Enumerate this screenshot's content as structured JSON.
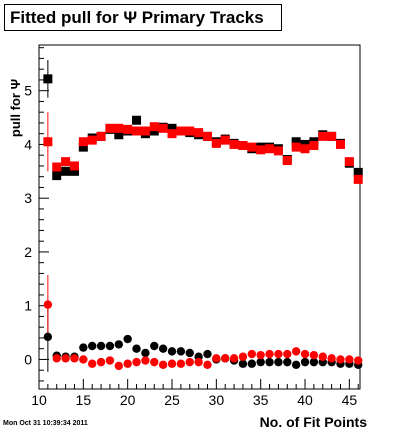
{
  "chart_data": {
    "type": "scatter",
    "title": "Fitted pull for Ψ  Primary Tracks",
    "xlabel": "No. of Fit Points",
    "ylabel": "pull for Ψ",
    "xlim": [
      10,
      46.2
    ],
    "ylim": [
      -0.55,
      5.85
    ],
    "xticks": [
      10,
      15,
      20,
      25,
      30,
      35,
      40,
      45
    ],
    "yticks": [
      0,
      1,
      2,
      3,
      4,
      5
    ],
    "grid": false,
    "legend": "none",
    "series": [
      {
        "color": "#000000",
        "marker": "square",
        "x": [
          11,
          12,
          13,
          14,
          15,
          16,
          17,
          18,
          19,
          20,
          21,
          22,
          23,
          24,
          25,
          26,
          27,
          28,
          29,
          30,
          31,
          32,
          33,
          34,
          35,
          36,
          37,
          38,
          39,
          40,
          41,
          42,
          43,
          44,
          45,
          46
        ],
        "y": [
          5.22,
          3.42,
          3.5,
          3.5,
          3.95,
          4.12,
          4.15,
          4.28,
          4.18,
          4.25,
          4.45,
          4.2,
          4.25,
          4.32,
          4.3,
          4.25,
          4.22,
          4.18,
          4.15,
          4.05,
          4.1,
          4.02,
          3.98,
          3.92,
          3.95,
          3.95,
          3.92,
          3.72,
          4.05,
          4.0,
          4.05,
          4.18,
          4.15,
          4.02,
          3.65,
          3.48
        ],
        "err": [
          0.35,
          0,
          0,
          0,
          0,
          0,
          0,
          0,
          0,
          0,
          0,
          0,
          0,
          0,
          0,
          0,
          0,
          0,
          0,
          0,
          0,
          0,
          0,
          0,
          0,
          0,
          0,
          0,
          0,
          0,
          0,
          0,
          0,
          0,
          0,
          0
        ]
      },
      {
        "color": "#ff0000",
        "marker": "square",
        "x": [
          11,
          12,
          13,
          14,
          15,
          16,
          17,
          18,
          19,
          20,
          21,
          22,
          23,
          24,
          25,
          26,
          27,
          28,
          29,
          30,
          31,
          32,
          33,
          34,
          35,
          36,
          37,
          38,
          39,
          40,
          41,
          42,
          43,
          44,
          45,
          46
        ],
        "y": [
          4.05,
          3.58,
          3.68,
          3.6,
          4.05,
          4.08,
          4.15,
          4.3,
          4.3,
          4.28,
          4.25,
          4.25,
          4.33,
          4.3,
          4.2,
          4.25,
          4.25,
          4.22,
          4.15,
          4.02,
          4.08,
          4.0,
          3.98,
          3.95,
          3.9,
          3.92,
          3.88,
          3.7,
          3.95,
          3.92,
          3.98,
          4.15,
          4.15,
          4.0,
          3.68,
          3.35
        ],
        "err": [
          0.55,
          0,
          0,
          0,
          0,
          0,
          0,
          0,
          0,
          0,
          0,
          0,
          0,
          0,
          0,
          0,
          0,
          0,
          0,
          0,
          0,
          0,
          0,
          0,
          0,
          0,
          0,
          0,
          0,
          0,
          0,
          0,
          0,
          0,
          0,
          0
        ]
      },
      {
        "color": "#000000",
        "marker": "circle",
        "x": [
          11,
          12,
          13,
          14,
          15,
          16,
          17,
          18,
          19,
          20,
          21,
          22,
          23,
          24,
          25,
          26,
          27,
          28,
          29,
          30,
          31,
          32,
          33,
          34,
          35,
          36,
          37,
          38,
          39,
          40,
          41,
          42,
          43,
          44,
          45,
          46
        ],
        "y": [
          0.42,
          0.07,
          0.05,
          0.05,
          0.22,
          0.25,
          0.25,
          0.25,
          0.28,
          0.38,
          0.2,
          0.12,
          0.25,
          0.2,
          0.15,
          0.15,
          0.12,
          0.05,
          0.1,
          0.0,
          0.02,
          -0.02,
          -0.08,
          -0.08,
          -0.05,
          -0.05,
          -0.05,
          -0.05,
          -0.1,
          -0.05,
          -0.05,
          -0.05,
          -0.05,
          -0.08,
          -0.08,
          -0.1
        ],
        "err": [
          0.65,
          0,
          0,
          0,
          0,
          0,
          0,
          0,
          0,
          0,
          0,
          0,
          0,
          0,
          0,
          0,
          0,
          0,
          0,
          0,
          0,
          0,
          0,
          0,
          0,
          0,
          0,
          0,
          0,
          0,
          0,
          0,
          0,
          0,
          0,
          0
        ]
      },
      {
        "color": "#ff0000",
        "marker": "circle",
        "x": [
          11,
          12,
          13,
          14,
          15,
          16,
          17,
          18,
          19,
          20,
          21,
          22,
          23,
          24,
          25,
          26,
          27,
          28,
          29,
          30,
          31,
          32,
          33,
          34,
          35,
          36,
          37,
          38,
          39,
          40,
          41,
          42,
          43,
          44,
          45,
          46
        ],
        "y": [
          1.02,
          0.02,
          0.02,
          0.02,
          0.0,
          -0.08,
          -0.05,
          -0.02,
          -0.12,
          -0.08,
          -0.05,
          -0.02,
          -0.05,
          -0.1,
          -0.08,
          -0.08,
          -0.05,
          -0.05,
          -0.1,
          0.02,
          0.02,
          0.02,
          0.05,
          0.1,
          0.08,
          0.1,
          0.1,
          0.1,
          0.15,
          0.1,
          0.08,
          0.05,
          0.02,
          0.0,
          0.0,
          -0.02
        ],
        "err": [
          0.55,
          0,
          0,
          0,
          0,
          0,
          0,
          0,
          0,
          0,
          0,
          0,
          0,
          0,
          0,
          0,
          0,
          0,
          0,
          0,
          0,
          0,
          0,
          0,
          0,
          0,
          0,
          0,
          0,
          0,
          0,
          0,
          0,
          0,
          0,
          0
        ]
      }
    ]
  },
  "footer": {
    "timestamp": "Mon Oct 31 10:39:34 2011"
  }
}
